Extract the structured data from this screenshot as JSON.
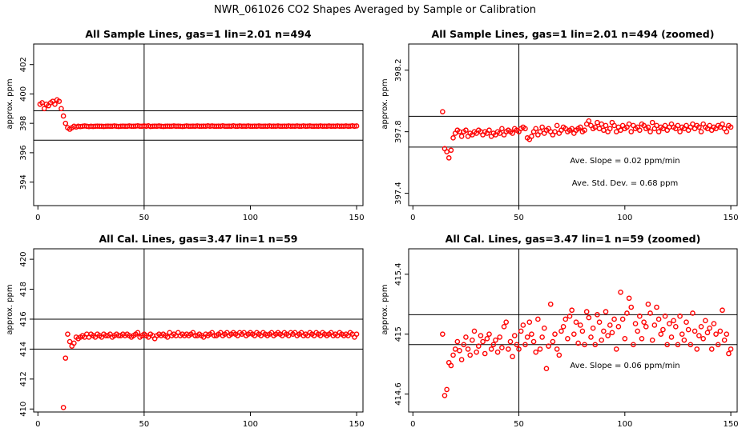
{
  "main_title": "NWR_061026  CO2 Shapes Averaged by Sample or Calibration",
  "colors": {
    "points": "#ff0000",
    "lines": "#000000"
  },
  "chart_data": [
    {
      "type": "scatter",
      "title": "All Sample Lines, gas=1 lin=2.01 n=494",
      "ylabel": "approx. ppm",
      "xlim": [
        -2,
        153
      ],
      "ylim": [
        392.4,
        403.4
      ],
      "xticks": [
        0,
        50,
        100,
        150
      ],
      "yticks": [
        394,
        396,
        398,
        400,
        402
      ],
      "vline": 50,
      "hlines": [
        396.85,
        398.85
      ],
      "x_start": 1,
      "y": [
        399.3,
        399.4,
        399.0,
        399.3,
        399.2,
        399.4,
        399.5,
        399.3,
        399.6,
        399.5,
        399.0,
        398.5,
        398.0,
        397.7,
        397.6,
        397.7,
        397.8,
        397.75,
        397.8,
        397.78,
        397.8,
        397.82,
        397.8,
        397.78,
        397.8,
        397.79,
        397.8,
        397.81,
        397.8,
        397.8,
        397.79,
        397.8,
        397.81,
        397.8,
        397.8,
        397.82,
        397.8,
        397.79,
        397.8,
        397.81,
        397.8,
        397.8,
        397.82,
        397.8,
        397.8,
        397.81,
        397.83,
        397.8,
        397.8,
        397.82,
        397.8,
        397.83,
        397.79,
        397.8,
        397.81,
        397.8,
        397.82,
        397.8,
        397.79,
        397.8,
        397.81,
        397.8,
        397.8,
        397.82,
        397.8,
        397.81,
        397.8,
        397.79,
        397.8,
        397.82,
        397.8,
        397.8,
        397.81,
        397.8,
        397.82,
        397.8,
        397.8,
        397.81,
        397.8,
        397.83,
        397.8,
        397.82,
        397.8,
        397.8,
        397.81,
        397.8,
        397.83,
        397.8,
        397.8,
        397.81,
        397.8,
        397.83,
        397.8,
        397.8,
        397.82,
        397.8,
        397.81,
        397.8,
        397.82,
        397.8,
        397.8,
        397.81,
        397.8,
        397.82,
        397.8,
        397.8,
        397.81,
        397.8,
        397.82,
        397.8,
        397.81,
        397.8,
        397.82,
        397.8,
        397.8,
        397.81,
        397.8,
        397.82,
        397.8,
        397.81,
        397.8,
        397.82,
        397.8,
        397.8,
        397.82,
        397.8,
        397.81,
        397.82,
        397.8,
        397.8,
        397.81,
        397.8,
        397.82,
        397.8,
        397.81,
        397.8,
        397.82,
        397.8,
        397.81,
        397.8,
        397.82,
        397.8,
        397.81,
        397.8,
        397.82,
        397.8,
        397.81,
        397.83,
        397.8,
        397.82
      ]
    },
    {
      "type": "scatter",
      "title": "All Sample Lines, gas=1 lin=2.01 n=494 (zoomed)",
      "ylabel": "approx. ppm",
      "xlim": [
        -2,
        153
      ],
      "ylim": [
        397.32,
        398.37
      ],
      "xticks": [
        0,
        50,
        100,
        150
      ],
      "yticks": [
        397.4,
        397.8,
        398.2
      ],
      "vline": 50,
      "hlines": [
        397.7,
        397.9
      ],
      "annotations": [
        "Ave. Slope =  0.02  ppm/min",
        "Ave. Std. Dev. =  0.68  ppm"
      ],
      "x_start": 14,
      "y": [
        397.93,
        397.69,
        397.67,
        397.63,
        397.68,
        397.76,
        397.79,
        397.81,
        397.8,
        397.77,
        397.8,
        397.81,
        397.77,
        397.79,
        397.78,
        397.8,
        397.79,
        397.81,
        397.8,
        397.78,
        397.8,
        397.79,
        397.81,
        397.77,
        397.79,
        397.78,
        397.8,
        397.79,
        397.82,
        397.78,
        397.8,
        397.81,
        397.8,
        397.79,
        397.82,
        397.81,
        397.8,
        397.82,
        397.83,
        397.82,
        397.76,
        397.75,
        397.77,
        397.8,
        397.82,
        397.78,
        397.8,
        397.83,
        397.79,
        397.81,
        397.82,
        397.8,
        397.78,
        397.8,
        397.84,
        397.79,
        397.81,
        397.83,
        397.82,
        397.8,
        397.81,
        397.82,
        397.79,
        397.81,
        397.82,
        397.83,
        397.8,
        397.81,
        397.85,
        397.87,
        397.84,
        397.82,
        397.83,
        397.86,
        397.82,
        397.85,
        397.81,
        397.84,
        397.8,
        397.82,
        397.86,
        397.84,
        397.8,
        397.83,
        397.81,
        397.84,
        397.82,
        397.83,
        397.85,
        397.8,
        397.84,
        397.82,
        397.83,
        397.81,
        397.85,
        397.84,
        397.82,
        397.83,
        397.8,
        397.86,
        397.82,
        397.84,
        397.8,
        397.83,
        397.82,
        397.84,
        397.81,
        397.83,
        397.85,
        397.83,
        397.82,
        397.84,
        397.8,
        397.83,
        397.82,
        397.84,
        397.81,
        397.83,
        397.85,
        397.82,
        397.84,
        397.83,
        397.8,
        397.85,
        397.83,
        397.82,
        397.84,
        397.81,
        397.83,
        397.82,
        397.84,
        397.83,
        397.85,
        397.82,
        397.8,
        397.84,
        397.83
      ]
    },
    {
      "type": "scatter",
      "title": "All Cal. Lines, gas=3.47 lin=1 n=59",
      "ylabel": "approx. ppm",
      "xlim": [
        -2,
        153
      ],
      "ylim": [
        409.8,
        420.7
      ],
      "xticks": [
        0,
        50,
        100,
        150
      ],
      "yticks": [
        410,
        412,
        414,
        416,
        418,
        420
      ],
      "vline": 50,
      "hlines": [
        414.0,
        416.0
      ],
      "x_start": 12,
      "y": [
        410.1,
        413.4,
        415.0,
        414.5,
        414.2,
        414.4,
        414.8,
        414.7,
        414.8,
        414.9,
        414.8,
        415.0,
        414.8,
        415.0,
        414.9,
        414.8,
        415.0,
        414.9,
        414.8,
        415.0,
        414.9,
        414.9,
        415.0,
        414.8,
        414.9,
        415.0,
        414.9,
        414.9,
        415.0,
        414.9,
        415.0,
        414.9,
        414.8,
        414.9,
        415.0,
        415.1,
        414.8,
        414.9,
        415.0,
        414.9,
        414.8,
        415.0,
        414.9,
        414.7,
        414.9,
        415.0,
        414.9,
        415.0,
        414.9,
        414.8,
        415.1,
        414.9,
        415.0,
        414.9,
        415.1,
        414.9,
        415.0,
        414.9,
        415.0,
        414.9,
        415.0,
        415.1,
        414.9,
        414.9,
        415.0,
        414.9,
        414.8,
        415.0,
        414.9,
        415.0,
        415.1,
        414.9,
        414.9,
        415.0,
        415.1,
        414.9,
        415.0,
        415.1,
        414.9,
        415.0,
        415.1,
        415.0,
        414.9,
        415.1,
        415.0,
        415.1,
        414.9,
        415.0,
        415.1,
        415.0,
        414.9,
        415.1,
        415.0,
        414.9,
        415.1,
        415.0,
        414.9,
        415.0,
        415.1,
        414.9,
        415.0,
        415.1,
        415.0,
        414.9,
        415.1,
        415.0,
        414.9,
        415.1,
        415.0,
        415.1,
        414.9,
        415.0,
        415.1,
        414.9,
        415.0,
        414.9,
        415.1,
        415.0,
        414.9,
        415.1,
        415.0,
        414.9,
        415.1,
        415.0,
        414.9,
        415.0,
        415.1,
        414.9,
        415.0,
        414.9,
        415.1,
        415.0,
        414.9,
        415.0,
        414.9,
        415.1,
        415.0,
        414.8,
        415.0
      ]
    },
    {
      "type": "scatter",
      "title": "All Cal. Lines, gas=3.47 lin=1 n=59 (zoomed)",
      "ylabel": "approx. ppm",
      "xlim": [
        -2,
        153
      ],
      "ylim": [
        414.48,
        415.57
      ],
      "xticks": [
        0,
        50,
        100,
        150
      ],
      "yticks": [
        414.6,
        415.0,
        415.4
      ],
      "vline": 50,
      "hlines": [
        414.93,
        415.13
      ],
      "annotations": [
        "Ave. Slope =  0.06  ppm/min"
      ],
      "x_start": 14,
      "y": [
        415.0,
        414.59,
        414.63,
        414.81,
        414.79,
        414.86,
        414.9,
        414.95,
        414.89,
        414.83,
        414.93,
        414.98,
        414.9,
        414.86,
        414.96,
        415.02,
        414.88,
        414.92,
        414.99,
        414.95,
        414.87,
        414.97,
        415.0,
        414.9,
        414.93,
        414.96,
        414.88,
        414.98,
        414.91,
        415.05,
        415.08,
        414.9,
        414.95,
        414.85,
        414.99,
        414.93,
        414.9,
        415.02,
        415.06,
        414.93,
        414.98,
        415.08,
        415.0,
        414.95,
        414.88,
        415.1,
        414.9,
        414.98,
        415.04,
        414.77,
        414.92,
        415.2,
        414.95,
        415.0,
        414.9,
        414.86,
        415.02,
        415.05,
        415.1,
        414.97,
        415.12,
        415.16,
        415.0,
        415.08,
        414.94,
        415.06,
        415.02,
        414.93,
        415.15,
        415.11,
        414.98,
        415.04,
        414.93,
        415.13,
        415.08,
        414.96,
        415.02,
        415.15,
        414.99,
        415.06,
        415.01,
        415.1,
        414.9,
        415.05,
        415.28,
        415.1,
        414.97,
        415.14,
        415.24,
        415.18,
        414.93,
        415.07,
        415.02,
        415.12,
        414.97,
        415.08,
        415.05,
        415.2,
        415.14,
        414.96,
        415.06,
        415.18,
        415.1,
        415.0,
        415.03,
        415.12,
        414.93,
        415.07,
        414.98,
        415.09,
        415.05,
        414.93,
        415.12,
        415.0,
        414.96,
        415.08,
        415.03,
        414.93,
        415.14,
        415.02,
        414.9,
        414.99,
        415.05,
        414.97,
        415.09,
        415.01,
        415.04,
        414.9,
        415.07,
        415.0,
        414.93,
        415.02,
        415.16,
        414.96,
        415.0,
        414.87,
        414.9
      ]
    }
  ]
}
